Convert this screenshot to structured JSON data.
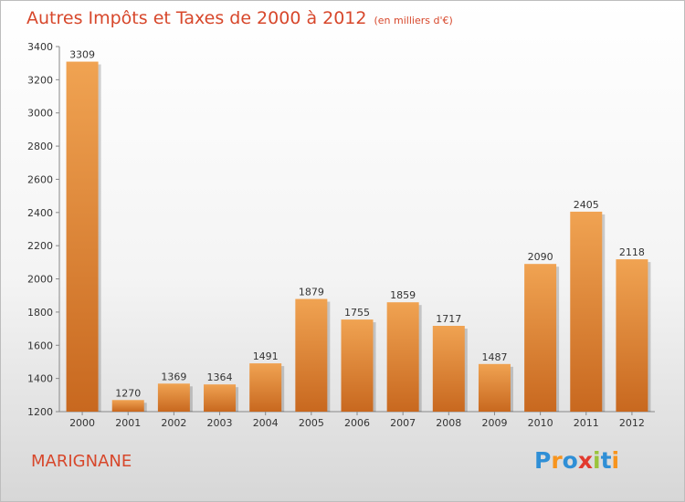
{
  "chart_data": {
    "type": "bar",
    "title": "Autres Impôts et Taxes de 2000 à 2012",
    "subtitle": "(en milliers d'€)",
    "categories": [
      "2000",
      "2001",
      "2002",
      "2003",
      "2004",
      "2005",
      "2006",
      "2007",
      "2008",
      "2009",
      "2010",
      "2011",
      "2012"
    ],
    "values": [
      3309,
      1270,
      1369,
      1364,
      1491,
      1879,
      1755,
      1859,
      1717,
      1487,
      2090,
      2405,
      2118
    ],
    "ylim": [
      1200,
      3400
    ],
    "yticks": [
      1200,
      1400,
      1600,
      1800,
      2000,
      2200,
      2400,
      2600,
      2800,
      3000,
      3200,
      3400
    ],
    "grid": false,
    "bar_color": "#f0a352",
    "bar_color_dark": "#c8681f"
  },
  "location": "MARIGNANE",
  "logo": {
    "text": "Proxiti",
    "colors": [
      "#2f8fd6",
      "#f7941d",
      "#2f8fd6",
      "#e23a2e",
      "#9ac43c",
      "#2f8fd6",
      "#f7941d"
    ]
  }
}
